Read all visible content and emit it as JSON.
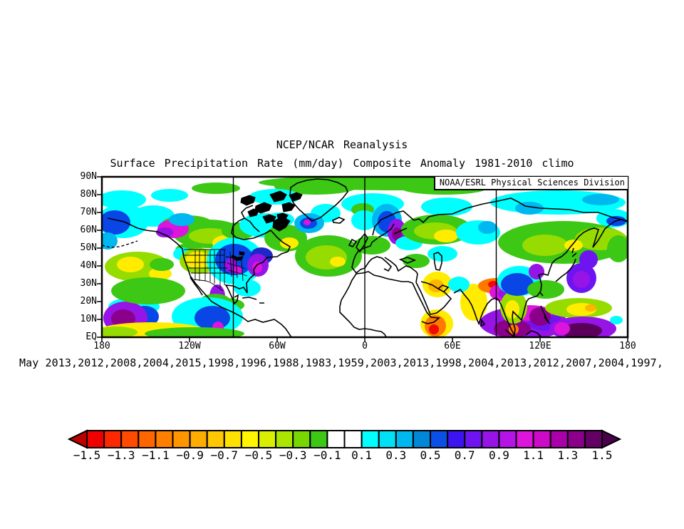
{
  "title": "NCEP/NCAR Reanalysis",
  "subtitle": "Surface Precipitation Rate (mm/day) Composite Anomaly 1981-2010 climo",
  "attribution": "NOAA/ESRL Physical Sciences Division",
  "caption": "May 2013,2012,2008,2004,2015,1998,1996,1988,1983,1959,2003,2013,1998,2004,2013,2012,2007,2004,1997,",
  "chart_data": {
    "type": "heatmap",
    "title": "NCEP/NCAR Reanalysis",
    "subtitle": "Surface Precipitation Rate (mm/day) Composite Anomaly 1981-2010 climo",
    "variable": "Surface Precipitation Rate",
    "units": "mm/day",
    "anomaly_base": "1981-2010 climo",
    "month": "May",
    "composite_years": [
      2013,
      2012,
      2008,
      2004,
      2015,
      1998,
      1996,
      1988,
      1983,
      1959,
      2003,
      2013,
      1998,
      2004,
      2013,
      2012,
      2007,
      2004,
      1997
    ],
    "source_label": "NOAA/ESRL Physical Sciences Division",
    "lat_ticks": [
      "90N",
      "80N",
      "70N",
      "60N",
      "50N",
      "40N",
      "30N",
      "20N",
      "10N",
      "EQ"
    ],
    "lon_ticks": [
      "180",
      "120W",
      "60W",
      "0",
      "60E",
      "120E",
      "180"
    ],
    "lat_range_deg": [
      0,
      90
    ],
    "lon_range_deg": [
      -180,
      180
    ],
    "meridian_lines_deg": [
      -90,
      0,
      90
    ],
    "colorbar": {
      "labels": [
        "−1.5",
        "−1.3",
        "−1.1",
        "−0.9",
        "−0.7",
        "−0.5",
        "−0.3",
        "−0.1",
        "0.1",
        "0.3",
        "0.5",
        "0.7",
        "0.9",
        "1.1",
        "1.3",
        "1.5"
      ],
      "level_values": [
        -1.5,
        -1.3,
        -1.1,
        -0.9,
        -0.7,
        -0.5,
        -0.3,
        -0.1,
        0.1,
        0.3,
        0.5,
        0.7,
        0.9,
        1.1,
        1.3,
        1.5
      ],
      "cell_step": 0.1,
      "cell_colors": [
        "#f10000",
        "#fb2800",
        "#ff4b00",
        "#ff6600",
        "#ff8000",
        "#ff9600",
        "#ffac00",
        "#ffc800",
        "#ffe100",
        "#fff500",
        "#d8f000",
        "#aae600",
        "#78d700",
        "#3cc814",
        "#ffffff",
        "#ffffff",
        "#00ffff",
        "#00e1f5",
        "#00b8f0",
        "#0087d7",
        "#0a50e6",
        "#3c14f0",
        "#6e14f0",
        "#9614e6",
        "#b414e6",
        "#dc14dc",
        "#cd0ac8",
        "#aa00aa",
        "#8b008b",
        "#640064"
      ],
      "under_arrow_color": "#bb0000",
      "over_arrow_color": "#4a004a"
    },
    "palette": {
      "c": "#00ffff",
      "cb": "#00b8f0",
      "b": "#0a46e6",
      "db": "#1e28c8",
      "v": "#6e14f0",
      "p": "#9614e6",
      "m": "#dc14dc",
      "dp": "#8b008b",
      "ddp": "#5a005a",
      "g": "#3cc814",
      "lg": "#96dc00",
      "y": "#ffec00",
      "yo": "#ffb400",
      "o": "#ff7800",
      "r": "#f00a00"
    },
    "blobs": [
      [
        420,
        8,
        200,
        11,
        "g"
      ],
      [
        300,
        14,
        58,
        11,
        "g"
      ],
      [
        480,
        16,
        60,
        9,
        "g"
      ],
      [
        160,
        16,
        34,
        8,
        "g"
      ],
      [
        695,
        7,
        52,
        8,
        "g"
      ],
      [
        28,
        32,
        34,
        13,
        "c"
      ],
      [
        95,
        26,
        26,
        9,
        "c"
      ],
      [
        243,
        28,
        36,
        11,
        "c"
      ],
      [
        380,
        38,
        44,
        15,
        "c"
      ],
      [
        484,
        42,
        36,
        13,
        "c"
      ],
      [
        640,
        36,
        95,
        17,
        "c"
      ],
      [
        718,
        58,
        24,
        13,
        "c"
      ],
      [
        600,
        44,
        20,
        9,
        "cb"
      ],
      [
        700,
        32,
        26,
        8,
        "cb"
      ],
      [
        722,
        62,
        14,
        7,
        "b"
      ],
      [
        30,
        62,
        36,
        24,
        "c"
      ],
      [
        18,
        64,
        22,
        17,
        "b"
      ],
      [
        8,
        90,
        14,
        12,
        "cb"
      ],
      [
        72,
        55,
        30,
        15,
        "c"
      ],
      [
        150,
        80,
        50,
        20,
        "g"
      ],
      [
        120,
        66,
        36,
        12,
        "g"
      ],
      [
        152,
        83,
        30,
        11,
        "lg"
      ],
      [
        173,
        93,
        18,
        11,
        "y"
      ],
      [
        122,
        103,
        19,
        10,
        "g"
      ],
      [
        192,
        76,
        24,
        12,
        "g"
      ],
      [
        227,
        68,
        34,
        17,
        "c"
      ],
      [
        250,
        60,
        20,
        10,
        "c"
      ],
      [
        100,
        73,
        22,
        13,
        "m"
      ],
      [
        88,
        78,
        12,
        7,
        "p"
      ],
      [
        112,
        60,
        18,
        9,
        "cb"
      ],
      [
        113,
        108,
        13,
        9,
        "c"
      ],
      [
        136,
        118,
        27,
        18,
        "lg"
      ],
      [
        135,
        117,
        18,
        12,
        "y"
      ],
      [
        187,
        118,
        40,
        33,
        "c"
      ],
      [
        186,
        116,
        27,
        22,
        "b"
      ],
      [
        181,
        124,
        9,
        10,
        "p"
      ],
      [
        191,
        131,
        6,
        6,
        "m"
      ],
      [
        224,
        111,
        16,
        12,
        "db"
      ],
      [
        219,
        124,
        15,
        16,
        "p"
      ],
      [
        218,
        127,
        7,
        8,
        "m"
      ],
      [
        204,
        156,
        19,
        12,
        "c"
      ],
      [
        162,
        168,
        11,
        17,
        "p"
      ],
      [
        162,
        172,
        5,
        8,
        "m"
      ],
      [
        159,
        174,
        21,
        10,
        "g"
      ],
      [
        175,
        180,
        25,
        10,
        "g"
      ],
      [
        148,
        196,
        50,
        27,
        "c"
      ],
      [
        155,
        198,
        25,
        17,
        "b"
      ],
      [
        163,
        211,
        8,
        8,
        "m"
      ],
      [
        45,
        182,
        36,
        13,
        "c"
      ],
      [
        60,
        196,
        20,
        15,
        "b"
      ],
      [
        33,
        198,
        31,
        23,
        "p"
      ],
      [
        30,
        199,
        17,
        13,
        "dp"
      ],
      [
        70,
        216,
        75,
        12,
        "y"
      ],
      [
        130,
        220,
        70,
        9,
        "g"
      ],
      [
        20,
        218,
        30,
        8,
        "lg"
      ],
      [
        50,
        126,
        46,
        21,
        "lg"
      ],
      [
        40,
        123,
        19,
        11,
        "y"
      ],
      [
        82,
        136,
        16,
        9,
        "y"
      ],
      [
        65,
        160,
        52,
        19,
        "g"
      ],
      [
        84,
        123,
        17,
        9,
        "g"
      ],
      [
        258,
        86,
        30,
        19,
        "g"
      ],
      [
        263,
        93,
        13,
        8,
        "y"
      ],
      [
        318,
        111,
        47,
        29,
        "g"
      ],
      [
        315,
        113,
        29,
        17,
        "lg"
      ],
      [
        331,
        119,
        11,
        7,
        "y"
      ],
      [
        314,
        51,
        21,
        13,
        "c"
      ],
      [
        291,
        65,
        21,
        14,
        "cb"
      ],
      [
        290,
        65,
        12,
        8,
        "b"
      ],
      [
        288,
        64,
        5,
        4,
        "m"
      ],
      [
        366,
        46,
        16,
        9,
        "g"
      ],
      [
        368,
        61,
        18,
        14,
        "c"
      ],
      [
        400,
        61,
        21,
        23,
        "cb"
      ],
      [
        400,
        63,
        13,
        15,
        "b"
      ],
      [
        414,
        77,
        13,
        18,
        "p"
      ],
      [
        414,
        80,
        7,
        9,
        "dp"
      ],
      [
        379,
        96,
        26,
        13,
        "g"
      ],
      [
        431,
        93,
        19,
        10,
        "c"
      ],
      [
        470,
        74,
        50,
        21,
        "g"
      ],
      [
        468,
        76,
        30,
        12,
        "lg"
      ],
      [
        483,
        83,
        17,
        9,
        "y"
      ],
      [
        528,
        78,
        31,
        17,
        "c"
      ],
      [
        541,
        71,
        13,
        9,
        "cb"
      ],
      [
        648,
        92,
        92,
        30,
        "g"
      ],
      [
        622,
        96,
        32,
        15,
        "lg"
      ],
      [
        700,
        87,
        36,
        16,
        "lg"
      ],
      [
        662,
        96,
        13,
        8,
        "y"
      ],
      [
        732,
        101,
        15,
        8,
        "y"
      ],
      [
        683,
        116,
        13,
        13,
        "v"
      ],
      [
        725,
        101,
        16,
        19,
        "g"
      ],
      [
        441,
        118,
        19,
        10,
        "g"
      ],
      [
        478,
        108,
        21,
        11,
        "c"
      ],
      [
        471,
        151,
        21,
        18,
        "y"
      ],
      [
        469,
        153,
        11,
        9,
        "yo"
      ],
      [
        470,
        206,
        23,
        20,
        "y"
      ],
      [
        468,
        209,
        15,
        15,
        "o"
      ],
      [
        466,
        214,
        7,
        7,
        "r"
      ],
      [
        522,
        176,
        19,
        26,
        "y"
      ],
      [
        501,
        151,
        15,
        11,
        "c"
      ],
      [
        553,
        153,
        25,
        11,
        "o"
      ],
      [
        549,
        151,
        7,
        5,
        "r"
      ],
      [
        565,
        162,
        21,
        13,
        "m"
      ],
      [
        567,
        164,
        11,
        7,
        "p"
      ],
      [
        592,
        205,
        62,
        23,
        "p"
      ],
      [
        576,
        213,
        26,
        13,
        "dp"
      ],
      [
        621,
        201,
        23,
        15,
        "v"
      ],
      [
        601,
        191,
        31,
        11,
        "m"
      ],
      [
        578,
        183,
        19,
        23,
        "lg"
      ],
      [
        576,
        186,
        10,
        13,
        "y"
      ],
      [
        578,
        214,
        7,
        7,
        "o"
      ],
      [
        615,
        196,
        15,
        13,
        "dp"
      ],
      [
        586,
        146,
        31,
        21,
        "c"
      ],
      [
        583,
        151,
        23,
        16,
        "b"
      ],
      [
        610,
        133,
        11,
        11,
        "p"
      ],
      [
        623,
        158,
        26,
        13,
        "g"
      ],
      [
        673,
        142,
        21,
        21,
        "v"
      ],
      [
        673,
        144,
        12,
        12,
        "p"
      ],
      [
        669,
        184,
        47,
        14,
        "lg"
      ],
      [
        673,
        186,
        21,
        9,
        "y"
      ],
      [
        686,
        184,
        8,
        5,
        "yo"
      ],
      [
        675,
        213,
        47,
        17,
        "p"
      ],
      [
        673,
        216,
        29,
        11,
        "ddp"
      ],
      [
        646,
        213,
        11,
        9,
        "m"
      ],
      [
        722,
        201,
        9,
        6,
        "c"
      ]
    ],
    "coast_paths": [
      "M8,58 L31,63 L50,72 L62,75 L78,77 L92,83 L105,93 L113,101 L115,113 L121,130 L124,139 L131,149 L139,158 L146,166 L154,175 L168,183 L184,190 L197,197 L205,203 L215,200 L226,204 L242,200 L252,207 L258,213 L266,225",
      "M124,141 L130,150 L136,158 L141,166",
      "M190,174 L186,178 L183,170 L176,155 L174,152 L184,153 L193,157 L199,155 L204,163 L203,149 L208,142 L214,137 L213,130 L218,123 L226,120 L232,113 L246,112 L252,108 L261,105 L264,98 L254,92 L246,85 L237,75",
      "M190,174 L191,166 L186,169",
      "M237,75 L228,80 L213,86 L199,88 L188,85 L182,79 L184,69 L192,62 L200,58 L208,63 L214,71 L221,77",
      "M200,58 L196,50 L202,44 L212,40",
      "M197,170 L207,169 L217,172 M221,177 L228,177",
      "M295,62 L286,54 L277,46 L269,37 L264,26 L265,15 L274,9 L287,5 L302,3 L317,4 L331,8 L342,14 L345,21 L338,30 L329,39 L318,48 L307,57 Z",
      "M324,61 L333,57 L340,60 L334,65 L325,64 Z",
      "M380,82 L383,70 L392,60 L403,55 L414,50 L423,48 L430,54 L438,61 L445,59 L451,64 L459,56 L472,53 L492,52 L512,44 L535,38 L556,34 L574,30 L584,35 L594,41 L615,44 L636,45 L656,46 L676,50 L697,50 L717,57 L738,62",
      "M388,85 L397,80 L406,73 L410,66 M410,80 L419,76 L428,72",
      "M387,86 L379,92 L377,97 L368,100 L360,104 L356,110 L353,118 L351,127 L357,135 L363,130 L369,128 L375,119 L379,115 L386,112 L393,114 L400,120 L406,126 L402,132 L396,129 M397,113 L406,119 L413,125 L416,132 L422,128 L427,125 L433,127 L441,133 L443,136 L441,148",
      "M357,99 L362,88 L369,80 L373,86 L368,96 L362,105 Z M347,96 L351,88 L357,91 L352,98 Z",
      "M357,136 L366,135 L374,133 L382,138 L391,140 L401,143 L411,145 L421,147 L430,147 L436,149",
      "M357,136 L351,145 L347,154 L342,163 L336,173 L334,182 L334,190 L341,197 L348,204 L354,211 L361,214 L369,213 L377,214 L385,216 L392,217 L397,221 L399,225",
      "M441,148 L448,162 L454,176 L461,193 L470,191 L480,183 L490,171 L481,162 L472,157 L464,152 L456,149 L448,147",
      "M436,149 L442,162 L449,176 L456,190 L462,197 L473,198 L466,204 L457,206 L449,203",
      "M472,157 L478,152 L486,155 L480,161",
      "M466,108 L472,106 L477,111 L477,121 L474,131 L469,130 L467,121 Z M419,116 L429,113 L439,117 L429,121 Z",
      "M494,163 L503,158 L510,167 L515,173 L519,180 L523,190 L526,199 L529,206 L532,197 L535,189 L541,178 L547,172 L553,170 L557,173 L561,181 L564,189 L567,197 L571,206 L575,215 L579,222 L580,213 L577,204 L576,196 L577,189 L583,195 L589,201 L592,190 L594,182 L596,175 L599,171 L605,169 L611,167 L616,160 L617,151 L615,143 L613,138 L619,136 L626,138 L629,129 L632,121 L637,116 L645,112 L652,106 L657,99 L663,92 L669,84 L676,78 L684,74 L691,72 L697,74 L694,83 L691,93 L689,99 L696,90 L702,80 L706,73 L713,67 L721,62 L729,60 L738,63",
      "M637,147 L645,140 L652,135 L658,129 L663,121 L665,115 M660,112 L666,107 M662,100 L660,107",
      "M615,162 L619,167 M616,181 L620,190 L624,199 L628,206 M621,196 L626,204",
      "M533,201 L537,207 L532,209 Z",
      "M566,214 L573,220 L580,225 M595,222 L603,216 L611,219 L617,225"
    ],
    "dash_paths": [
      "M0,96 L12,99 L25,98 L38,94 L50,90"
    ],
    "land_fill_paths": [
      "M196,30 l11,-4 l8,3 l-2,7 l-10,4 l-8,-4 z",
      "M216,41 l12,-5 l10,4 l-3,7 l-12,4 l-8,-4 z",
      "M236,25 l14,-5 l9,5 l-4,7 l-13,3 z",
      "M253,39 l10,-3 l8,4 l-5,7 l-11,2 z",
      "M226,56 l9,-3 l9,3 l-3,6 l-10,3 z",
      "M205,49 l8,-4 l7,3 l-3,6 l-9,2 z",
      "M246,53 l8,-2 l7,3 l-4,6 l-9,1 z",
      "M263,26 l10,-4 l8,3 l-3,6 l-10,3 z",
      "M241,62 l13,-6 l10,6 l-6,9 l-9,5 l-9,-5 z",
      "M183,110 l7,3 l8,-1 l-2,5 l-8,0 l-6,-4 z",
      "M193,105 l7,1 l-1,4 l-6,-1 z"
    ],
    "state_border_paths": [
      "M115,102 L174,102",
      "M129,144 L146,146 L152,148 L160,153 L170,160",
      "M131,103 L131,145",
      "M137,103 L137,146",
      "M145,103 L145,146",
      "M152,103 L152,147",
      "M158,103 L158,150",
      "M166,103 L166,156",
      "M172,103 L172,152",
      "M115,110 L172,110",
      "M118,120 L174,120",
      "M122,128 L176,128",
      "M125,135 L178,135",
      "M180,105 L182,140",
      "M188,112 L190,142",
      "M196,118 L198,146",
      "M174,112 L186,114 L196,117",
      "M176,121 L190,125 L202,129",
      "M178,131 L192,135 L204,139"
    ]
  }
}
